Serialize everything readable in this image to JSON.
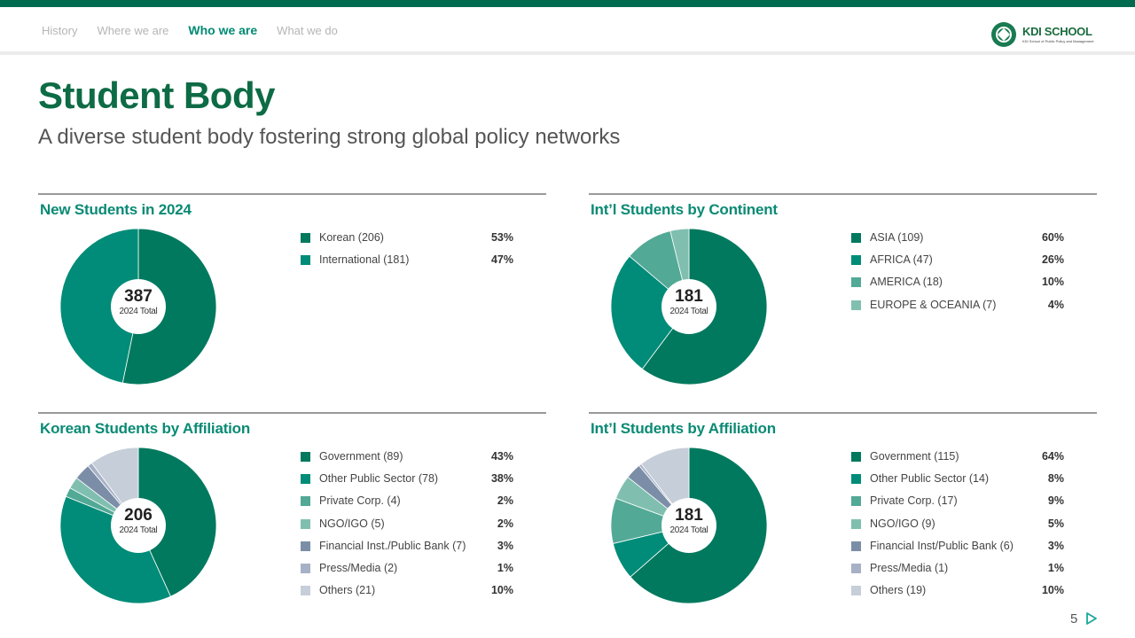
{
  "nav": {
    "items": [
      {
        "label": "History",
        "active": false
      },
      {
        "label": "Where we are",
        "active": false
      },
      {
        "label": "Who we are",
        "active": true
      },
      {
        "label": "What we do",
        "active": false
      }
    ],
    "logo_text": "KDI SCHOOL",
    "logo_sub": "KDI School of Public Policy and Management"
  },
  "page": {
    "title": "Student Body",
    "subtitle": "A diverse student body fostering strong global policy networks",
    "page_number": "5"
  },
  "chart_data": [
    {
      "type": "pie",
      "title": "New Students in 2024",
      "total": "387",
      "total_label": "2024 Total",
      "slices": [
        {
          "label": "Korean (206)",
          "value": 206,
          "pct": "53%",
          "color": "#00795e"
        },
        {
          "label": "International (181)",
          "value": 181,
          "pct": "47%",
          "color": "#008c78"
        }
      ]
    },
    {
      "type": "pie",
      "title": "Int’l Students by Continent",
      "total": "181",
      "total_label": "2024 Total",
      "slices": [
        {
          "label": "ASIA (109)",
          "value": 109,
          "pct": "60%",
          "color": "#00795e"
        },
        {
          "label": "AFRICA (47)",
          "value": 47,
          "pct": "26%",
          "color": "#008c78"
        },
        {
          "label": "AMERICA (18)",
          "value": 18,
          "pct": "10%",
          "color": "#52a996"
        },
        {
          "label": "EUROPE & OCEANIA (7)",
          "value": 7,
          "pct": "4%",
          "color": "#80bfb0"
        }
      ]
    },
    {
      "type": "pie",
      "title": "Korean Students by Affiliation",
      "total": "206",
      "total_label": "2024 Total",
      "slices": [
        {
          "label": "Government (89)",
          "value": 89,
          "pct": "43%",
          "color": "#00795e"
        },
        {
          "label": "Other Public Sector (78)",
          "value": 78,
          "pct": "38%",
          "color": "#008c78"
        },
        {
          "label": "Private Corp. (4)",
          "value": 4,
          "pct": "2%",
          "color": "#52a996"
        },
        {
          "label": "NGO/IGO (5)",
          "value": 5,
          "pct": "2%",
          "color": "#80bfb0"
        },
        {
          "label": "Financial Inst./Public Bank (7)",
          "value": 7,
          "pct": "3%",
          "color": "#7c8ea7"
        },
        {
          "label": "Press/Media (2)",
          "value": 2,
          "pct": "1%",
          "color": "#a7b1c6"
        },
        {
          "label": "Others (21)",
          "value": 21,
          "pct": "10%",
          "color": "#c6ced9"
        }
      ]
    },
    {
      "type": "pie",
      "title": "Int’l Students by Affiliation",
      "total": "181",
      "total_label": "2024 Total",
      "slices": [
        {
          "label": "Government (115)",
          "value": 115,
          "pct": "64%",
          "color": "#00795e"
        },
        {
          "label": "Other Public Sector (14)",
          "value": 14,
          "pct": "8%",
          "color": "#008c78"
        },
        {
          "label": "Private Corp. (17)",
          "value": 17,
          "pct": "9%",
          "color": "#52a996"
        },
        {
          "label": "NGO/IGO (9)",
          "value": 9,
          "pct": "5%",
          "color": "#80bfb0"
        },
        {
          "label": "Financial Inst/Public Bank (6)",
          "value": 6,
          "pct": "3%",
          "color": "#7c8ea7"
        },
        {
          "label": "Press/Media (1)",
          "value": 1,
          "pct": "1%",
          "color": "#a7b1c6"
        },
        {
          "label": "Others (19)",
          "value": 19,
          "pct": "10%",
          "color": "#c6ced9"
        }
      ]
    }
  ]
}
